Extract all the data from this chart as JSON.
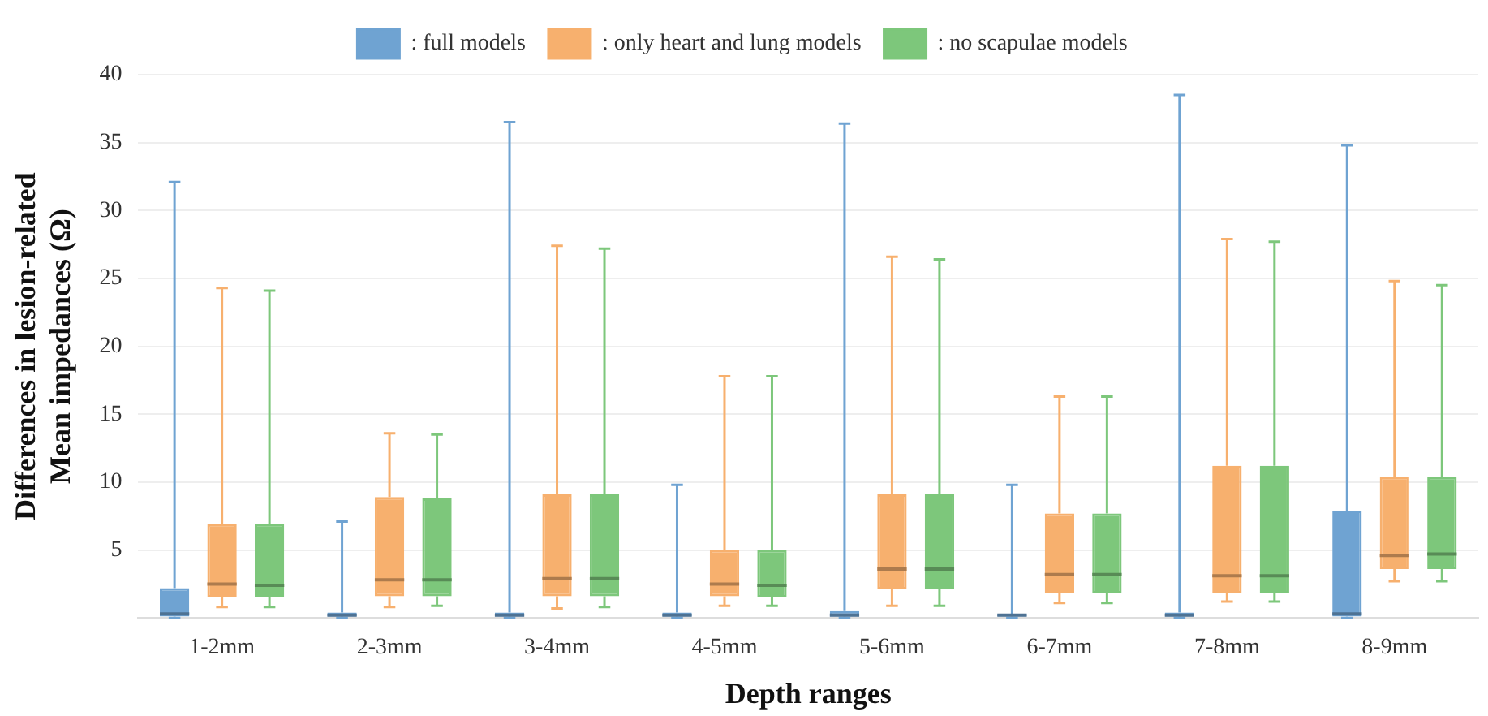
{
  "chart_data": {
    "type": "box",
    "xlabel": "Depth ranges",
    "ylabel": "Differences in lesion-related\nMean impedances (Ω)",
    "categories": [
      "1-2mm",
      "2-3mm",
      "3-4mm",
      "4-5mm",
      "5-6mm",
      "6-7mm",
      "7-8mm",
      "8-9mm"
    ],
    "ylim": [
      0,
      40
    ],
    "yticks": [
      5,
      10,
      15,
      20,
      25,
      30,
      35,
      40
    ],
    "grid": "y",
    "legend": "top",
    "series": [
      {
        "name": ": full models",
        "color": "#6fa3d2",
        "boxes": [
          {
            "low": 0,
            "q1": 0.1,
            "median": 0.3,
            "q3": 2.2,
            "high": 32.1
          },
          {
            "low": 0,
            "q1": 0.1,
            "median": 0.2,
            "q3": 0.4,
            "high": 7.1
          },
          {
            "low": 0,
            "q1": 0.1,
            "median": 0.2,
            "q3": 0.4,
            "high": 36.5
          },
          {
            "low": 0,
            "q1": 0.1,
            "median": 0.2,
            "q3": 0.4,
            "high": 9.8
          },
          {
            "low": 0,
            "q1": 0.1,
            "median": 0.2,
            "q3": 0.5,
            "high": 36.4
          },
          {
            "low": 0,
            "q1": 0.1,
            "median": 0.2,
            "q3": 0.3,
            "high": 9.8
          },
          {
            "low": 0,
            "q1": 0.1,
            "median": 0.2,
            "q3": 0.4,
            "high": 38.5
          },
          {
            "low": 0,
            "q1": 0.1,
            "median": 0.3,
            "q3": 7.9,
            "high": 34.8
          }
        ]
      },
      {
        "name": ": only heart and lung models",
        "color": "#f7b06e",
        "boxes": [
          {
            "low": 0.8,
            "q1": 1.5,
            "median": 2.5,
            "q3": 6.9,
            "high": 24.3
          },
          {
            "low": 0.8,
            "q1": 1.6,
            "median": 2.8,
            "q3": 8.9,
            "high": 13.6
          },
          {
            "low": 0.7,
            "q1": 1.6,
            "median": 2.9,
            "q3": 9.1,
            "high": 27.4
          },
          {
            "low": 0.9,
            "q1": 1.6,
            "median": 2.5,
            "q3": 5.0,
            "high": 17.8
          },
          {
            "low": 0.9,
            "q1": 2.1,
            "median": 3.6,
            "q3": 9.1,
            "high": 26.6
          },
          {
            "low": 1.1,
            "q1": 1.8,
            "median": 3.2,
            "q3": 7.7,
            "high": 16.3
          },
          {
            "low": 1.2,
            "q1": 1.8,
            "median": 3.1,
            "q3": 11.2,
            "high": 27.9
          },
          {
            "low": 2.7,
            "q1": 3.6,
            "median": 4.6,
            "q3": 10.4,
            "high": 24.8
          }
        ]
      },
      {
        "name": ": no scapulae models",
        "color": "#7dc77b",
        "boxes": [
          {
            "low": 0.8,
            "q1": 1.5,
            "median": 2.4,
            "q3": 6.9,
            "high": 24.1
          },
          {
            "low": 0.9,
            "q1": 1.6,
            "median": 2.8,
            "q3": 8.8,
            "high": 13.5
          },
          {
            "low": 0.8,
            "q1": 1.6,
            "median": 2.9,
            "q3": 9.1,
            "high": 27.2
          },
          {
            "low": 0.9,
            "q1": 1.5,
            "median": 2.4,
            "q3": 5.0,
            "high": 17.8
          },
          {
            "low": 0.9,
            "q1": 2.1,
            "median": 3.6,
            "q3": 9.1,
            "high": 26.4
          },
          {
            "low": 1.1,
            "q1": 1.8,
            "median": 3.2,
            "q3": 7.7,
            "high": 16.3
          },
          {
            "low": 1.2,
            "q1": 1.8,
            "median": 3.1,
            "q3": 11.2,
            "high": 27.7
          },
          {
            "low": 2.7,
            "q1": 3.6,
            "median": 4.7,
            "q3": 10.4,
            "high": 24.5
          }
        ]
      }
    ]
  }
}
